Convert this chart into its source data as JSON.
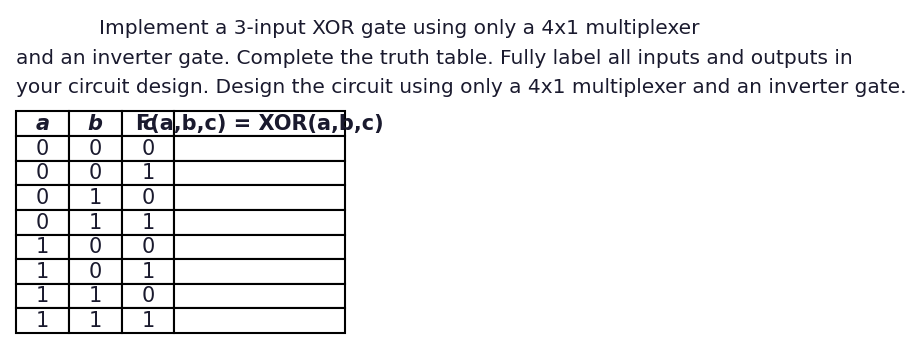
{
  "title_line1": "Implement a 3-input XOR gate using only a 4x1 multiplexer",
  "title_line2": "and an inverter gate. Complete the truth table. Fully label all inputs and outputs in",
  "title_line3": "your circuit design. Design the circuit using only a 4x1 multiplexer and an inverter gate.",
  "headers": [
    "a",
    "b",
    "c",
    "F(a,b,c) = XOR(a,b,c)"
  ],
  "header_italic": [
    true,
    true,
    true,
    false
  ],
  "rows": [
    [
      "0",
      "0",
      "0",
      ""
    ],
    [
      "0",
      "0",
      "1",
      ""
    ],
    [
      "0",
      "1",
      "0",
      ""
    ],
    [
      "0",
      "1",
      "1",
      ""
    ],
    [
      "1",
      "0",
      "0",
      ""
    ],
    [
      "1",
      "0",
      "1",
      ""
    ],
    [
      "1",
      "1",
      "0",
      ""
    ],
    [
      "1",
      "1",
      "1",
      ""
    ]
  ],
  "background_color": "#ffffff",
  "text_color": "#1a1a2e",
  "title_fontsize": 14.5,
  "header_fontsize": 15,
  "cell_fontsize": 15
}
